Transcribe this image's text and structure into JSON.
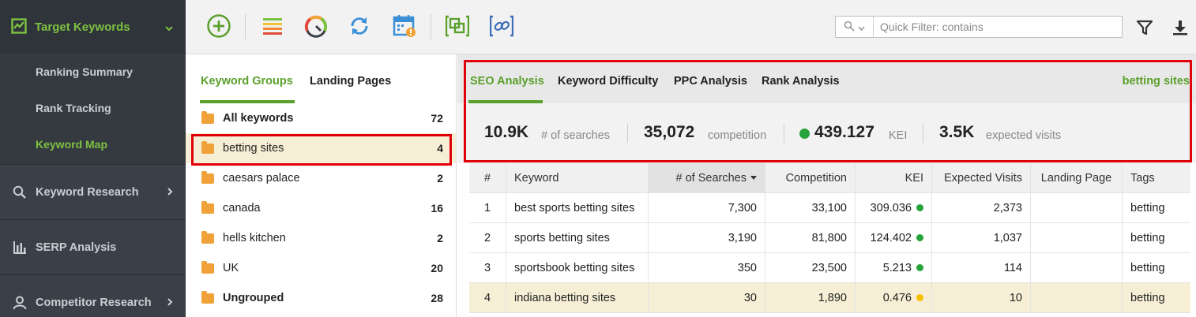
{
  "sidebar": {
    "header": {
      "title": "Target Keywords"
    },
    "sub_items": [
      {
        "label": "Ranking Summary",
        "active": false
      },
      {
        "label": "Rank Tracking",
        "active": false
      },
      {
        "label": "Keyword Map",
        "active": true
      }
    ],
    "sections": [
      {
        "label": "Keyword Research",
        "icon": "search-icon"
      },
      {
        "label": "SERP Analysis",
        "icon": "bar-chart-icon"
      },
      {
        "label": "Competitor Research",
        "icon": "user-icon"
      }
    ]
  },
  "toolbar": {
    "icons": [
      "add-icon",
      "list-icon",
      "gauge-icon",
      "refresh-icon",
      "calendar-alert-icon",
      "copy-group-icon",
      "link-icon"
    ],
    "filter_placeholder": "Quick Filter: contains"
  },
  "groups": {
    "tabs": [
      "Keyword Groups",
      "Landing Pages"
    ],
    "rows": [
      {
        "name": "All keywords",
        "count": "72",
        "bold": true
      },
      {
        "name": "betting sites",
        "count": "4",
        "selected": true
      },
      {
        "name": "caesars palace",
        "count": "2"
      },
      {
        "name": "canada",
        "count": "16"
      },
      {
        "name": "hells kitchen",
        "count": "2"
      },
      {
        "name": "UK",
        "count": "20"
      },
      {
        "name": "Ungrouped",
        "count": "28",
        "bold": true
      }
    ]
  },
  "seo": {
    "tabs": [
      "SEO Analysis",
      "Keyword Difficulty",
      "PPC Analysis",
      "Rank Analysis"
    ],
    "current_group": "betting sites",
    "stats": {
      "searches_value": "10.9K",
      "searches_label": "# of searches",
      "competition_value": "35,072",
      "competition_label": "competition",
      "kei_value": "439.127",
      "kei_label": "KEI",
      "visits_value": "3.5K",
      "visits_label": "expected visits"
    }
  },
  "table": {
    "headers": [
      "#",
      "Keyword",
      "# of Searches",
      "Competition",
      "KEI",
      "Expected Visits",
      "Landing Page",
      "Tags"
    ],
    "rows": [
      {
        "num": "1",
        "keyword": "best sports betting sites",
        "searches": "7,300",
        "competition": "33,100",
        "kei": "309.036",
        "kei_color": "#26a33b",
        "visits": "2,373",
        "landing": "",
        "tags": "betting"
      },
      {
        "num": "2",
        "keyword": "sports betting sites",
        "searches": "3,190",
        "competition": "81,800",
        "kei": "124.402",
        "kei_color": "#26a33b",
        "visits": "1,037",
        "landing": "",
        "tags": "betting"
      },
      {
        "num": "3",
        "keyword": "sportsbook betting sites",
        "searches": "350",
        "competition": "23,500",
        "kei": "5.213",
        "kei_color": "#26a33b",
        "visits": "114",
        "landing": "",
        "tags": "betting"
      },
      {
        "num": "4",
        "keyword": "indiana betting sites",
        "searches": "30",
        "competition": "1,890",
        "kei": "0.476",
        "kei_color": "#f5c000",
        "visits": "10",
        "landing": "",
        "tags": "betting"
      }
    ]
  }
}
